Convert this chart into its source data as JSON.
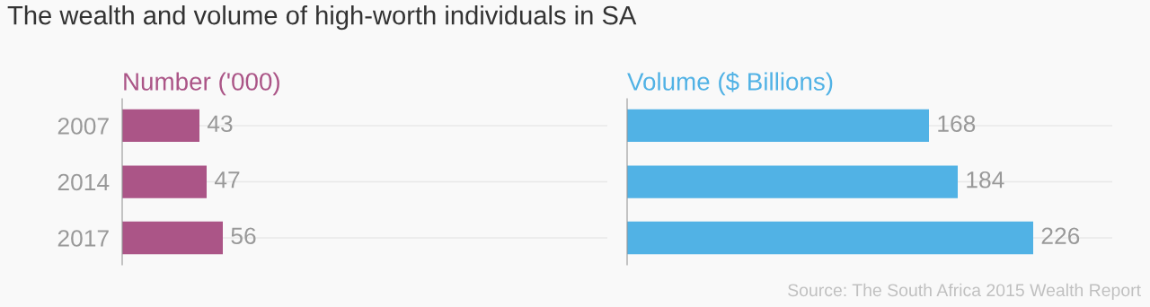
{
  "chart_data": [
    {
      "type": "bar",
      "orientation": "horizontal",
      "title": "The wealth and volume of high-worth individuals in SA",
      "subtitle": "Number ('000)",
      "categories": [
        "2007",
        "2014",
        "2017"
      ],
      "values": [
        43,
        47,
        56
      ],
      "color": "#ab5587",
      "xlim": [
        0,
        270
      ],
      "data_labels": true,
      "grid": "y",
      "tick_labels": "y"
    },
    {
      "type": "bar",
      "orientation": "horizontal",
      "subtitle": "Volume ($ Billions)",
      "categories": [
        "2007",
        "2014",
        "2017"
      ],
      "values": [
        168,
        184,
        226
      ],
      "color": "#51b2e5",
      "xlim": [
        0,
        270
      ],
      "data_labels": true,
      "grid": "y",
      "tick_labels": false,
      "annotations": [
        "Source: The South Africa 2015 Wealth Report"
      ]
    }
  ]
}
